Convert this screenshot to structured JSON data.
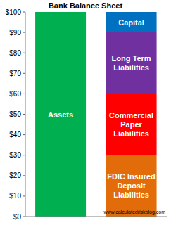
{
  "chart_data": {
    "type": "bar",
    "title": "Bank Balance Sheet",
    "stacked": true,
    "categories": [
      null,
      null
    ],
    "series": [
      {
        "name": "Assets",
        "color": "#00b050",
        "values": [
          100,
          null
        ]
      },
      {
        "name": "FDIC Insured Deposit Liabilities",
        "color": "#e36c0a",
        "values": [
          null,
          30
        ]
      },
      {
        "name": "Commercial Paper Liabilities",
        "color": "#ff0000",
        "values": [
          null,
          30
        ]
      },
      {
        "name": "Long Term Liabilities",
        "color": "#7030a0",
        "values": [
          null,
          30
        ]
      },
      {
        "name": "Capital",
        "color": "#0070c0",
        "values": [
          null,
          10
        ]
      }
    ],
    "ylim": [
      0,
      100
    ],
    "yticks": [
      {
        "value": 0,
        "label": "$0"
      },
      {
        "value": 10,
        "label": "$10"
      },
      {
        "value": 20,
        "label": "$20"
      },
      {
        "value": 30,
        "label": "$30"
      },
      {
        "value": 40,
        "label": "$40"
      },
      {
        "value": 50,
        "label": "$50"
      },
      {
        "value": 60,
        "label": "$60"
      },
      {
        "value": 70,
        "label": "$70"
      },
      {
        "value": 80,
        "label": "$80"
      },
      {
        "value": 90,
        "label": "$90"
      },
      {
        "value": 100,
        "label": "$100"
      }
    ],
    "annotations": [
      "www.calculatedriskblog.com"
    ]
  }
}
